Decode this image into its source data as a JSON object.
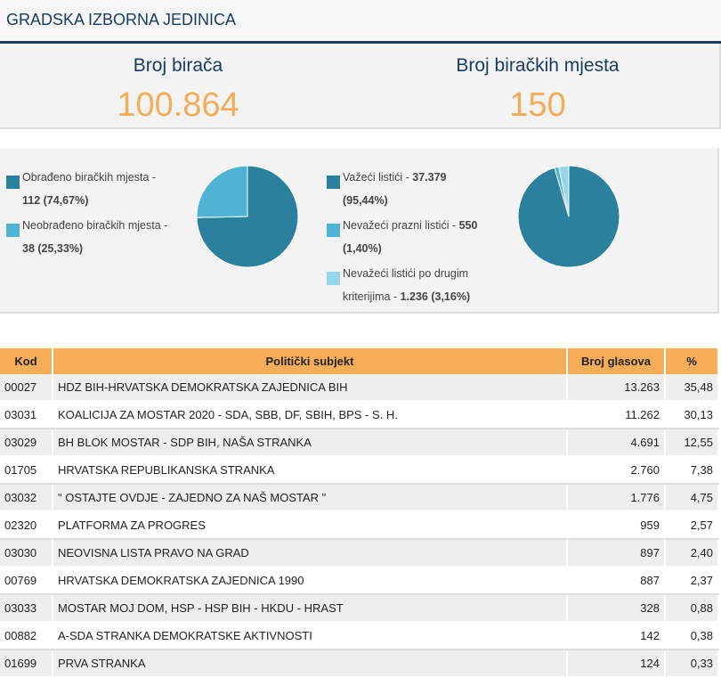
{
  "header": {
    "title": "GRADSKA IZBORNA JEDINICA"
  },
  "stats": {
    "voters_label": "Broj birača",
    "voters_value": "100.864",
    "stations_label": "Broj biračkih mjesta",
    "stations_value": "150"
  },
  "colors": {
    "dark_teal": "#2a809d",
    "light_teal": "#4fb4d4",
    "pale_teal": "#97d6ea",
    "accent_orange": "#f3ad58",
    "navy": "#1a3c63"
  },
  "processing_chart": {
    "legend": [
      {
        "line1": "Obrađeno biračkih mjesta -",
        "value": "112 (74,67%)",
        "color": "#2a809d",
        "share": 74.67
      },
      {
        "line1": "Neobrađeno biračkih mjesta -",
        "value": "38 (25,33%)",
        "color": "#4fb4d4",
        "share": 25.33
      }
    ]
  },
  "ballots_chart": {
    "legend": [
      {
        "line1_prefix": "Važeći listići - ",
        "line1_value": "37.379",
        "line2": "(95,44%)",
        "color": "#2a809d",
        "share": 95.44
      },
      {
        "line1_prefix": "Nevažeći prazni listići - ",
        "line1_value": "550",
        "line2": "(1,40%)",
        "color": "#4fb4d4",
        "share": 1.4
      },
      {
        "line1_prefix": "Nevažeći listići po drugim",
        "line2_prefix": "kriterijima - ",
        "line2": "1.236 (3,16%)",
        "color": "#97d6ea",
        "share": 3.16
      }
    ]
  },
  "table": {
    "headers": {
      "kod": "Kod",
      "subject": "Politički subjekt",
      "votes": "Broj glasova",
      "pct": "%"
    },
    "rows": [
      {
        "kod": "00027",
        "subject": "HDZ BIH-HRVATSKA DEMOKRATSKA ZAJEDNICA BIH",
        "votes": "13.263",
        "pct": "35,48"
      },
      {
        "kod": "03031",
        "subject": "KOALICIJA ZA MOSTAR 2020 - SDA, SBB, DF, SBIH, BPS - S. H.",
        "votes": "11.262",
        "pct": "30,13"
      },
      {
        "kod": "03029",
        "subject": "BH BLOK MOSTAR - SDP BIH, NAŠA STRANKA",
        "votes": "4.691",
        "pct": "12,55"
      },
      {
        "kod": "01705",
        "subject": "HRVATSKA REPUBLIKANSKA STRANKA",
        "votes": "2.760",
        "pct": "7,38"
      },
      {
        "kod": "03032",
        "subject": "\" OSTAJTE OVDJE - ZAJEDNO ZA NAŠ MOSTAR \"",
        "votes": "1.776",
        "pct": "4,75"
      },
      {
        "kod": "02320",
        "subject": "PLATFORMA ZA PROGRES",
        "votes": "959",
        "pct": "2,57"
      },
      {
        "kod": "03030",
        "subject": "NEOVISNA LISTA PRAVO NA GRAD",
        "votes": "897",
        "pct": "2,40"
      },
      {
        "kod": "00769",
        "subject": "HRVATSKA DEMOKRATSKA ZAJEDNICA 1990",
        "votes": "887",
        "pct": "2,37"
      },
      {
        "kod": "03033",
        "subject": "MOSTAR MOJ DOM, HSP - HSP BIH - HKDU - HRAST",
        "votes": "328",
        "pct": "0,88"
      },
      {
        "kod": "00882",
        "subject": "A-SDA STRANKA DEMOKRATSKE AKTIVNOSTI",
        "votes": "142",
        "pct": "0,38"
      },
      {
        "kod": "01699",
        "subject": "PRVA STRANKA",
        "votes": "124",
        "pct": "0,33"
      }
    ]
  }
}
